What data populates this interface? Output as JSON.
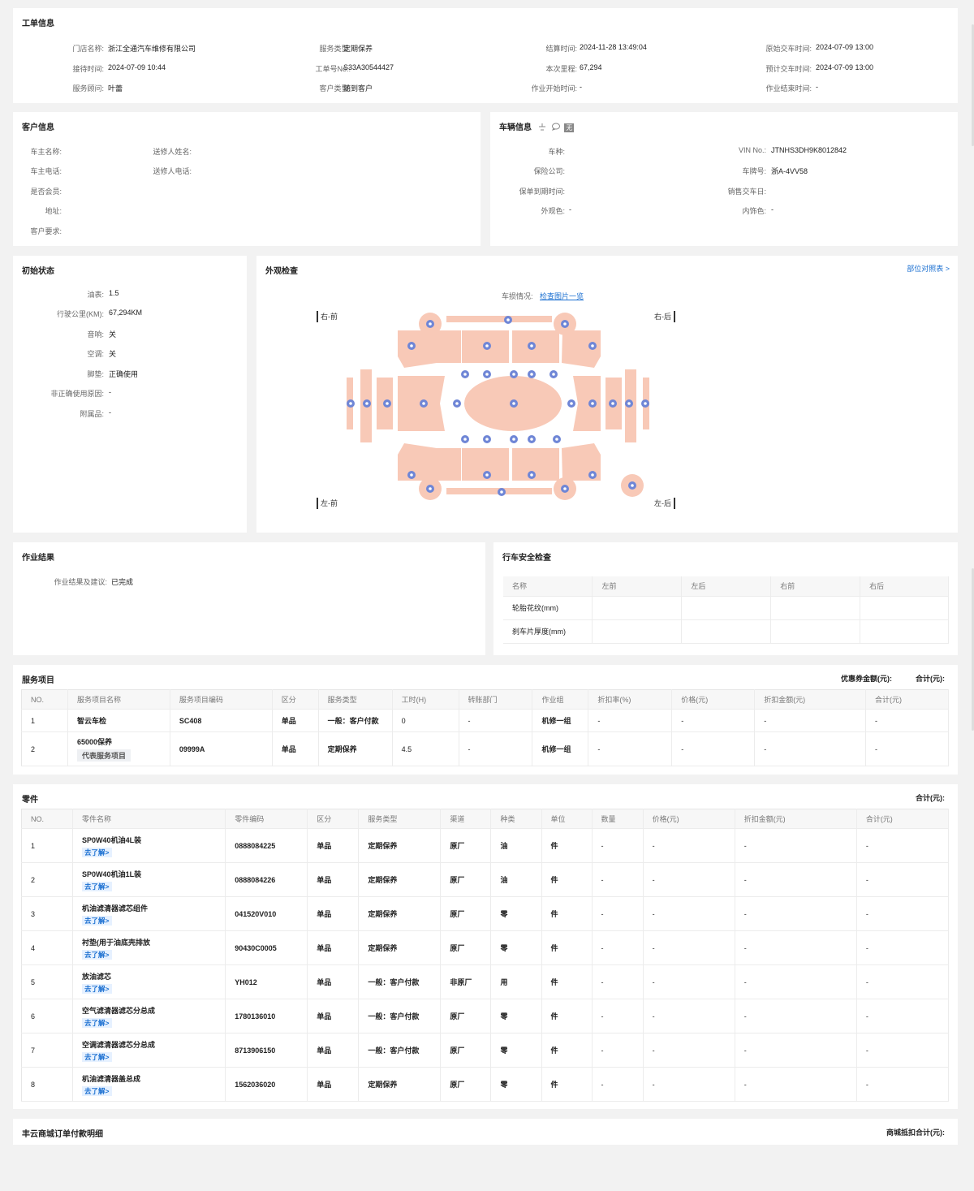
{
  "work_order": {
    "title": "工单信息",
    "fields": [
      {
        "label": "门店名称:",
        "value": "浙江全通汽车维修有限公司"
      },
      {
        "label": "服务类型:",
        "value": "定期保养"
      },
      {
        "label": "结算时间:",
        "value": "2024-11-28 13:49:04"
      },
      {
        "label": "原始交车时间:",
        "value": "2024-07-09 13:00"
      },
      {
        "label": "接待时间:",
        "value": "2024-07-09 10:44"
      },
      {
        "label": "工单号No.:",
        "value": "S33A30544427"
      },
      {
        "label": "本次里程:",
        "value": "67,294"
      },
      {
        "label": "预计交车时间:",
        "value": "2024-07-09 13:00"
      },
      {
        "label": "服务顾问:",
        "value": "叶蕾"
      },
      {
        "label": "客户类型:",
        "value": "随到客户"
      },
      {
        "label": "作业开始时间:",
        "value": "-"
      },
      {
        "label": "作业结束时间:",
        "value": "-"
      }
    ]
  },
  "customer": {
    "title": "客户信息",
    "fields": [
      {
        "label": "车主名称:",
        "value": ""
      },
      {
        "label": "送修人姓名:",
        "value": ""
      },
      {
        "label": "车主电话:",
        "value": ""
      },
      {
        "label": "送修人电话:",
        "value": ""
      },
      {
        "label": "是否会员:",
        "value": ""
      },
      {
        "label": "地址:",
        "value": ""
      },
      {
        "label": "客户要求:",
        "value": ""
      }
    ]
  },
  "vehicle": {
    "title": "车辆信息",
    "badge": "无",
    "fields": [
      {
        "label": "车种:",
        "value": ""
      },
      {
        "label": "VIN No.:",
        "value": "JTNHS3DH9K8012842"
      },
      {
        "label": "保险公司:",
        "value": ""
      },
      {
        "label": "车牌号:",
        "value": "浙A-4VV58"
      },
      {
        "label": "保单到期时间:",
        "value": ""
      },
      {
        "label": "销售交车日:",
        "value": ""
      },
      {
        "label": "外观色:",
        "value": "-"
      },
      {
        "label": "内饰色:",
        "value": "-"
      }
    ]
  },
  "initial_state": {
    "title": "初始状态",
    "fields": [
      {
        "label": "油表:",
        "value": "1.5"
      },
      {
        "label": "行驶公里(KM):",
        "value": "67,294KM"
      },
      {
        "label": "音响:",
        "value": "关"
      },
      {
        "label": "空调:",
        "value": "关"
      },
      {
        "label": "脚垫:",
        "value": "正确使用"
      },
      {
        "label": "非正确使用原因:",
        "value": "-"
      },
      {
        "label": "附属品:",
        "value": "-"
      }
    ]
  },
  "appearance": {
    "title": "外观检查",
    "parts_link": "部位对照表 >",
    "damage_label": "车损情况:",
    "damage_link": "检查图片一览",
    "corners": {
      "front_right": "右-前",
      "rear_right": "右-后",
      "front_left": "左-前",
      "rear_left": "左-后"
    },
    "colors": {
      "panel": "#f8c9b7",
      "marker": "#6f86d6"
    }
  },
  "work_result": {
    "title": "作业结果",
    "label": "作业结果及建议:",
    "value": "已完成"
  },
  "safety": {
    "title": "行车安全检查",
    "headers": [
      "名称",
      "左前",
      "左后",
      "右前",
      "右后"
    ],
    "rows": [
      [
        "轮胎花纹(mm)",
        "",
        "",
        "",
        ""
      ],
      [
        "刹车片厚度(mm)",
        "",
        "",
        "",
        ""
      ]
    ]
  },
  "services": {
    "title": "服务项目",
    "coupon_label": "优惠券金额(元):",
    "total_label": "合计(元):",
    "headers": [
      "NO.",
      "服务项目名称",
      "服务项目编码",
      "区分",
      "服务类型",
      "工时(H)",
      "转账部门",
      "作业组",
      "折扣率(%)",
      "价格(元)",
      "折扣金额(元)",
      "合计(元)"
    ],
    "rows": [
      {
        "no": "1",
        "name": "智云车检",
        "tag": "",
        "code": "SC408",
        "div": "单品",
        "type": "一般：客户付款",
        "hours": "0",
        "dept": "-",
        "group": "机修一组",
        "rate": "-",
        "price": "-",
        "disc": "-",
        "total": "-"
      },
      {
        "no": "2",
        "name": "65000保养",
        "tag": "代表服务项目",
        "code": "09999A",
        "div": "单品",
        "type": "定期保养",
        "hours": "4.5",
        "dept": "-",
        "group": "机修一组",
        "rate": "-",
        "price": "-",
        "disc": "-",
        "total": "-"
      }
    ]
  },
  "parts": {
    "title": "零件",
    "total_label": "合计(元):",
    "learn_more": "去了解>",
    "headers": [
      "NO.",
      "零件名称",
      "零件编码",
      "区分",
      "服务类型",
      "渠道",
      "种类",
      "单位",
      "数量",
      "价格(元)",
      "折扣金额(元)",
      "合计(元)"
    ],
    "rows": [
      {
        "no": "1",
        "name": "SP0W40机油4L装",
        "code": "0888084225",
        "div": "单品",
        "type": "定期保养",
        "channel": "原厂",
        "kind": "油",
        "unit": "件",
        "qty": "-",
        "price": "-",
        "disc": "-",
        "total": "-"
      },
      {
        "no": "2",
        "name": "SP0W40机油1L装",
        "code": "0888084226",
        "div": "单品",
        "type": "定期保养",
        "channel": "原厂",
        "kind": "油",
        "unit": "件",
        "qty": "-",
        "price": "-",
        "disc": "-",
        "total": "-"
      },
      {
        "no": "3",
        "name": "机油滤清器滤芯组件",
        "code": "041520V010",
        "div": "单品",
        "type": "定期保养",
        "channel": "原厂",
        "kind": "零",
        "unit": "件",
        "qty": "-",
        "price": "-",
        "disc": "-",
        "total": "-"
      },
      {
        "no": "4",
        "name": "衬垫(用于油底壳排放",
        "code": "90430C0005",
        "div": "单品",
        "type": "定期保养",
        "channel": "原厂",
        "kind": "零",
        "unit": "件",
        "qty": "-",
        "price": "-",
        "disc": "-",
        "total": "-"
      },
      {
        "no": "5",
        "name": "放油滤芯",
        "code": "YH012",
        "div": "单品",
        "type": "一般：客户付款",
        "channel": "非原厂",
        "kind": "用",
        "unit": "件",
        "qty": "-",
        "price": "-",
        "disc": "-",
        "total": "-"
      },
      {
        "no": "6",
        "name": "空气滤清器滤芯分总成",
        "code": "1780136010",
        "div": "单品",
        "type": "一般：客户付款",
        "channel": "原厂",
        "kind": "零",
        "unit": "件",
        "qty": "-",
        "price": "-",
        "disc": "-",
        "total": "-"
      },
      {
        "no": "7",
        "name": "空调滤清器滤芯分总成",
        "code": "8713906150",
        "div": "单品",
        "type": "一般：客户付款",
        "channel": "原厂",
        "kind": "零",
        "unit": "件",
        "qty": "-",
        "price": "-",
        "disc": "-",
        "total": "-"
      },
      {
        "no": "8",
        "name": "机油滤清器盖总成",
        "code": "1562036020",
        "div": "单品",
        "type": "定期保养",
        "channel": "原厂",
        "kind": "零",
        "unit": "件",
        "qty": "-",
        "price": "-",
        "disc": "-",
        "total": "-"
      }
    ]
  },
  "mall": {
    "title": "丰云商城订单付款明细",
    "total_label": "商城抵扣合计(元):"
  }
}
